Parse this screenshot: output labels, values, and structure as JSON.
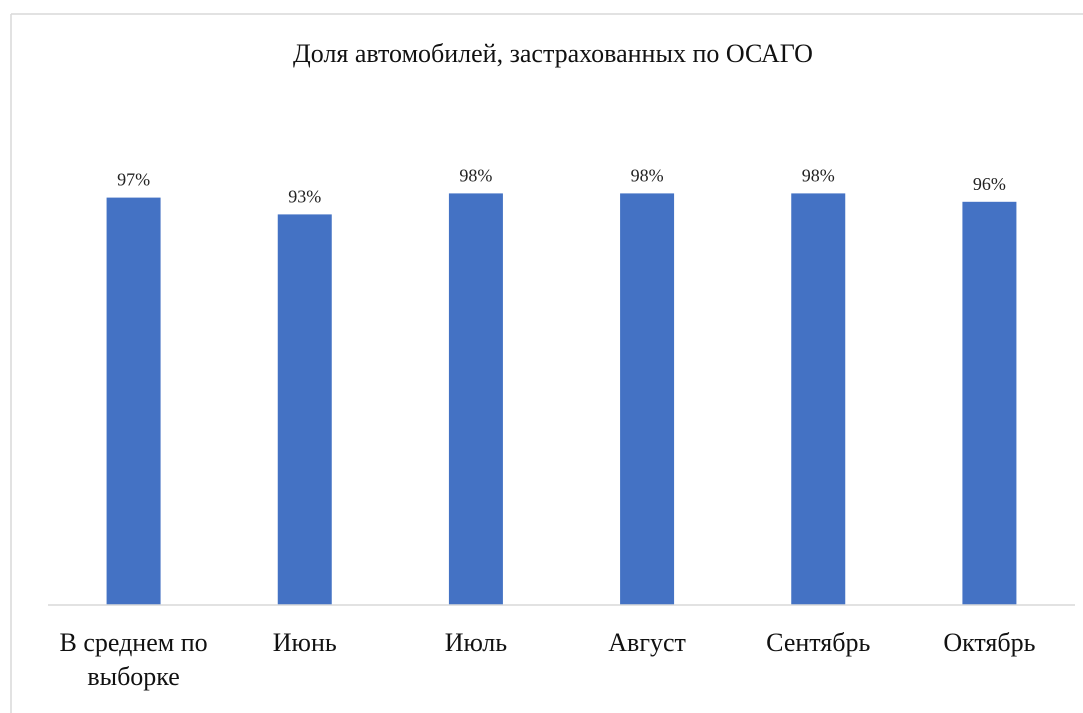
{
  "chart_data": {
    "type": "bar",
    "title": "Доля автомобилей, застрахованных по ОСАГО",
    "categories": [
      "В среднем по выборке",
      "Июнь",
      "Июль",
      "Август",
      "Сентябрь",
      "Октябрь"
    ],
    "values": [
      97,
      93,
      98,
      98,
      98,
      96
    ],
    "value_labels": [
      "97%",
      "93%",
      "98%",
      "98%",
      "98%",
      "96%"
    ],
    "color": "#4472c4",
    "ylim": [
      0,
      100
    ]
  }
}
